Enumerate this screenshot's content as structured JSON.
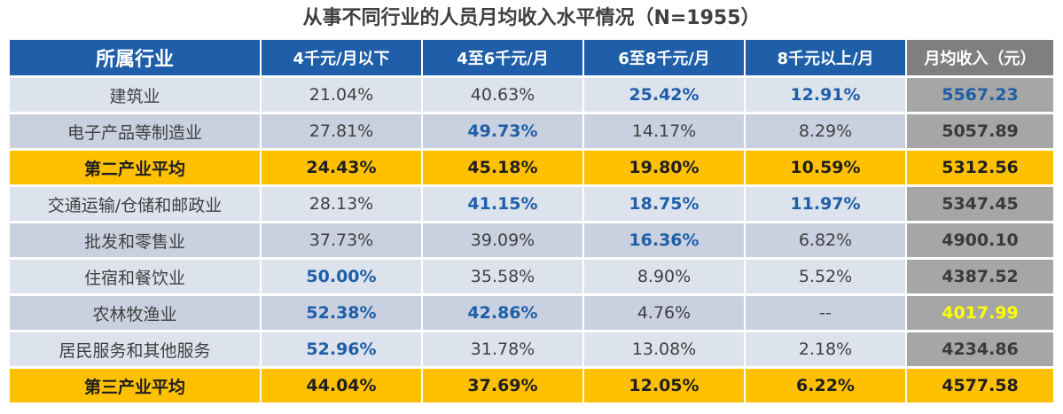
{
  "chart_data": {
    "type": "table",
    "title": "从事不同行业的人员月均收入水平情况（N=1955）",
    "columns": [
      "所属行业",
      "4千元/月以下",
      "4至6千元/月",
      "6至8千元/月",
      "8千元以上/月",
      "月均收入（元）"
    ],
    "rows": [
      [
        "建筑业",
        "21.04%",
        "40.63%",
        "25.42%",
        "12.91%",
        "5567.23"
      ],
      [
        "电子产品等制造业",
        "27.81%",
        "49.73%",
        "14.17%",
        "8.29%",
        "5057.89"
      ],
      [
        "第二产业平均",
        "24.43%",
        "45.18%",
        "19.80%",
        "10.59%",
        "5312.56"
      ],
      [
        "交通运输/仓储和邮政业",
        "28.13%",
        "41.15%",
        "18.75%",
        "11.97%",
        "5347.45"
      ],
      [
        "批发和零售业",
        "37.73%",
        "39.09%",
        "16.36%",
        "6.82%",
        "4900.10"
      ],
      [
        "住宿和餐饮业",
        "50.00%",
        "35.58%",
        "8.90%",
        "5.52%",
        "4387.52"
      ],
      [
        "农林牧渔业",
        "52.38%",
        "42.86%",
        "4.76%",
        "--",
        "4017.99"
      ],
      [
        "居民服务和其他服务",
        "52.96%",
        "31.78%",
        "13.08%",
        "2.18%",
        "4234.86"
      ],
      [
        "第三产业平均",
        "44.04%",
        "37.69%",
        "12.05%",
        "6.22%",
        "4577.58"
      ]
    ],
    "row_styles": [
      "light",
      "dark",
      "avg",
      "light",
      "dark",
      "light",
      "dark",
      "light",
      "avg"
    ],
    "highlights": [
      [
        false,
        false,
        false,
        true,
        true,
        true
      ],
      [
        false,
        false,
        true,
        false,
        false,
        false
      ],
      [
        false,
        false,
        false,
        false,
        false,
        false
      ],
      [
        false,
        false,
        true,
        true,
        true,
        false
      ],
      [
        false,
        false,
        false,
        true,
        false,
        false
      ],
      [
        false,
        true,
        false,
        false,
        false,
        false
      ],
      [
        false,
        true,
        true,
        false,
        false,
        false
      ],
      [
        false,
        true,
        false,
        false,
        false,
        false
      ],
      [
        false,
        false,
        false,
        false,
        false,
        false
      ]
    ],
    "yellow_highlights": [
      [
        6,
        5
      ]
    ],
    "colors": {
      "header_blue": "#1f5ea8",
      "header_gray": "#7f7f7f",
      "row_light": "#dde3ed",
      "row_dark": "#c9d1e0",
      "income_gray": "#a6a6a6",
      "average_gold": "#ffc000",
      "highlight_blue": "#1f5ea8",
      "highlight_yellow": "#ffff00"
    }
  }
}
